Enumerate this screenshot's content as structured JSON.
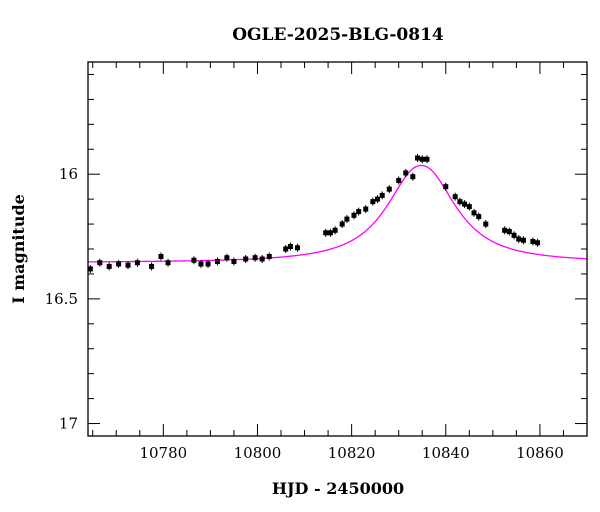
{
  "chart_data": {
    "type": "scatter",
    "title": "OGLE-2025-BLG-0814",
    "xlabel": "HJD - 2450000",
    "ylabel": "I magnitude",
    "xlim": [
      10764,
      10870
    ],
    "ylim": [
      15.55,
      17.05
    ],
    "y_inverted": true,
    "grid": false,
    "x_major_ticks": [
      10780,
      10800,
      10820,
      10840,
      10860
    ],
    "x_minor_step": 5,
    "y_major_ticks": [
      16,
      16.5,
      17
    ],
    "y_tick_labels": [
      "16",
      "16.5",
      "17"
    ],
    "y_minor_step": 0.1,
    "colors": {
      "model": "#ff00ff",
      "points": "#000000"
    },
    "model": {
      "t0": 10834.8,
      "baseline": 16.355,
      "peak": 15.965,
      "tau": 8.5,
      "alpha": 1.2
    },
    "points": [
      {
        "x": 10764.5,
        "y": 16.38
      },
      {
        "x": 10766.5,
        "y": 16.355
      },
      {
        "x": 10768.5,
        "y": 16.37
      },
      {
        "x": 10770.5,
        "y": 16.36
      },
      {
        "x": 10772.5,
        "y": 16.365
      },
      {
        "x": 10774.5,
        "y": 16.355
      },
      {
        "x": 10777.5,
        "y": 16.37
      },
      {
        "x": 10779.5,
        "y": 16.33
      },
      {
        "x": 10781.0,
        "y": 16.355
      },
      {
        "x": 10786.5,
        "y": 16.345
      },
      {
        "x": 10788.0,
        "y": 16.36
      },
      {
        "x": 10789.5,
        "y": 16.36
      },
      {
        "x": 10791.5,
        "y": 16.35
      },
      {
        "x": 10793.5,
        "y": 16.335
      },
      {
        "x": 10795.0,
        "y": 16.35
      },
      {
        "x": 10797.5,
        "y": 16.34
      },
      {
        "x": 10799.5,
        "y": 16.335
      },
      {
        "x": 10801.0,
        "y": 16.34
      },
      {
        "x": 10802.5,
        "y": 16.33
      },
      {
        "x": 10806.0,
        "y": 16.3
      },
      {
        "x": 10807.0,
        "y": 16.29
      },
      {
        "x": 10808.5,
        "y": 16.295
      },
      {
        "x": 10814.5,
        "y": 16.235
      },
      {
        "x": 10815.5,
        "y": 16.235
      },
      {
        "x": 10816.5,
        "y": 16.225
      },
      {
        "x": 10818.0,
        "y": 16.2
      },
      {
        "x": 10819.0,
        "y": 16.18
      },
      {
        "x": 10820.5,
        "y": 16.165
      },
      {
        "x": 10821.5,
        "y": 16.15
      },
      {
        "x": 10823.0,
        "y": 16.14
      },
      {
        "x": 10824.5,
        "y": 16.11
      },
      {
        "x": 10825.5,
        "y": 16.1
      },
      {
        "x": 10826.5,
        "y": 16.085
      },
      {
        "x": 10828.0,
        "y": 16.06
      },
      {
        "x": 10830.0,
        "y": 16.025
      },
      {
        "x": 10831.5,
        "y": 15.995
      },
      {
        "x": 10833.0,
        "y": 16.01
      },
      {
        "x": 10834.0,
        "y": 15.935
      },
      {
        "x": 10835.0,
        "y": 15.94
      },
      {
        "x": 10836.0,
        "y": 15.94
      },
      {
        "x": 10840.0,
        "y": 16.05
      },
      {
        "x": 10842.0,
        "y": 16.09
      },
      {
        "x": 10843.0,
        "y": 16.11
      },
      {
        "x": 10844.0,
        "y": 16.12
      },
      {
        "x": 10845.0,
        "y": 16.13
      },
      {
        "x": 10846.0,
        "y": 16.155
      },
      {
        "x": 10847.0,
        "y": 16.17
      },
      {
        "x": 10848.5,
        "y": 16.2
      },
      {
        "x": 10852.5,
        "y": 16.225
      },
      {
        "x": 10853.5,
        "y": 16.23
      },
      {
        "x": 10854.5,
        "y": 16.245
      },
      {
        "x": 10855.5,
        "y": 16.26
      },
      {
        "x": 10856.5,
        "y": 16.265
      },
      {
        "x": 10858.5,
        "y": 16.27
      },
      {
        "x": 10859.5,
        "y": 16.275
      }
    ]
  }
}
